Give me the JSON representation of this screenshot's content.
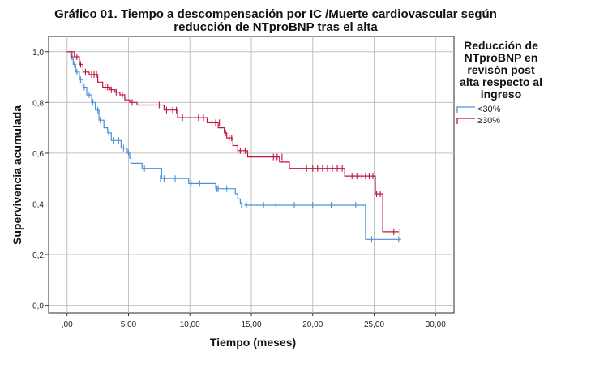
{
  "chart_data": {
    "type": "line",
    "step": true,
    "title": "Gráfico 01. Tiempo a descompensación por IC /Muerte cardiovascular según reducción de NTproBNP tras el alta",
    "xlabel": "Tiempo (meses)",
    "ylabel": "Supervivencia acumulada",
    "xlim": [
      -1.5,
      31.5
    ],
    "ylim": [
      -0.03,
      1.06
    ],
    "x_ticks": [
      0,
      5,
      10,
      15,
      20,
      25,
      30
    ],
    "x_tick_labels": [
      ",00",
      "5,00",
      "10,00",
      "15,00",
      "20,00",
      "25,00",
      "30,00"
    ],
    "y_ticks": [
      0,
      0.2,
      0.4,
      0.6,
      0.8,
      1.0
    ],
    "y_tick_labels": [
      "0,0",
      "0,2",
      "0,4",
      "0,6",
      "0,8",
      "1,0"
    ],
    "grid": true,
    "legend_title": "Reducción de NTproBNP en revisón post alta respecto al ingreso",
    "legend_position": "right",
    "series": [
      {
        "name": "<30%",
        "color": "#4a90d9",
        "steps": [
          [
            0,
            1.0
          ],
          [
            0.3,
            0.98
          ],
          [
            0.5,
            0.95
          ],
          [
            0.7,
            0.92
          ],
          [
            1.0,
            0.89
          ],
          [
            1.3,
            0.86
          ],
          [
            1.6,
            0.83
          ],
          [
            2.0,
            0.8
          ],
          [
            2.3,
            0.77
          ],
          [
            2.6,
            0.73
          ],
          [
            3.0,
            0.7
          ],
          [
            3.3,
            0.68
          ],
          [
            3.6,
            0.65
          ],
          [
            4.4,
            0.62
          ],
          [
            4.9,
            0.6
          ],
          [
            5.1,
            0.58
          ],
          [
            5.2,
            0.56
          ],
          [
            6.1,
            0.54
          ],
          [
            7.7,
            0.5
          ],
          [
            9.9,
            0.48
          ],
          [
            12.1,
            0.46
          ],
          [
            13.7,
            0.44
          ],
          [
            13.9,
            0.42
          ],
          [
            14.1,
            0.4
          ],
          [
            14.5,
            0.395
          ],
          [
            24.3,
            0.26
          ],
          [
            27.2,
            0.26
          ]
        ],
        "censored": [
          [
            0.4,
            0.98
          ],
          [
            0.6,
            0.95
          ],
          [
            0.8,
            0.92
          ],
          [
            1.1,
            0.89
          ],
          [
            1.4,
            0.86
          ],
          [
            1.8,
            0.83
          ],
          [
            2.1,
            0.8
          ],
          [
            2.5,
            0.77
          ],
          [
            2.7,
            0.73
          ],
          [
            3.4,
            0.68
          ],
          [
            3.8,
            0.65
          ],
          [
            4.2,
            0.65
          ],
          [
            4.6,
            0.62
          ],
          [
            5.0,
            0.6
          ],
          [
            6.3,
            0.54
          ],
          [
            7.6,
            0.5
          ],
          [
            7.9,
            0.5
          ],
          [
            8.8,
            0.5
          ],
          [
            10.1,
            0.48
          ],
          [
            10.8,
            0.48
          ],
          [
            12.2,
            0.46
          ],
          [
            12.3,
            0.46
          ],
          [
            13.0,
            0.46
          ],
          [
            14.2,
            0.395
          ],
          [
            14.6,
            0.395
          ],
          [
            16.0,
            0.395
          ],
          [
            17.0,
            0.395
          ],
          [
            18.5,
            0.395
          ],
          [
            20.0,
            0.395
          ],
          [
            21.5,
            0.395
          ],
          [
            23.5,
            0.395
          ],
          [
            24.8,
            0.26
          ],
          [
            27.0,
            0.26
          ]
        ]
      },
      {
        "name": "≥30%",
        "color": "#c0143c",
        "steps": [
          [
            0,
            1.0
          ],
          [
            0.6,
            0.98
          ],
          [
            1.0,
            0.95
          ],
          [
            1.3,
            0.92
          ],
          [
            1.8,
            0.91
          ],
          [
            2.5,
            0.88
          ],
          [
            2.9,
            0.86
          ],
          [
            3.5,
            0.85
          ],
          [
            3.9,
            0.84
          ],
          [
            4.3,
            0.83
          ],
          [
            4.7,
            0.81
          ],
          [
            5.1,
            0.8
          ],
          [
            5.7,
            0.79
          ],
          [
            7.9,
            0.77
          ],
          [
            9.0,
            0.74
          ],
          [
            10.9,
            0.74
          ],
          [
            11.4,
            0.72
          ],
          [
            12.3,
            0.7
          ],
          [
            12.8,
            0.68
          ],
          [
            13.0,
            0.66
          ],
          [
            13.5,
            0.63
          ],
          [
            13.9,
            0.61
          ],
          [
            14.7,
            0.585
          ],
          [
            17.3,
            0.565
          ],
          [
            18.1,
            0.54
          ],
          [
            22.6,
            0.51
          ],
          [
            25.1,
            0.44
          ],
          [
            25.7,
            0.29
          ],
          [
            27.0,
            0.29
          ]
        ],
        "censored": [
          [
            0.4,
            0.99
          ],
          [
            0.8,
            0.98
          ],
          [
            1.1,
            0.95
          ],
          [
            1.5,
            0.92
          ],
          [
            2.0,
            0.91
          ],
          [
            2.2,
            0.91
          ],
          [
            2.4,
            0.91
          ],
          [
            3.1,
            0.86
          ],
          [
            3.3,
            0.86
          ],
          [
            3.6,
            0.85
          ],
          [
            4.0,
            0.84
          ],
          [
            4.5,
            0.83
          ],
          [
            4.8,
            0.81
          ],
          [
            5.3,
            0.8
          ],
          [
            7.5,
            0.79
          ],
          [
            8.1,
            0.77
          ],
          [
            8.6,
            0.77
          ],
          [
            8.9,
            0.77
          ],
          [
            9.4,
            0.74
          ],
          [
            10.7,
            0.74
          ],
          [
            11.1,
            0.74
          ],
          [
            11.8,
            0.72
          ],
          [
            12.1,
            0.72
          ],
          [
            12.4,
            0.72
          ],
          [
            12.9,
            0.68
          ],
          [
            13.2,
            0.66
          ],
          [
            13.4,
            0.66
          ],
          [
            14.1,
            0.61
          ],
          [
            14.5,
            0.61
          ],
          [
            16.8,
            0.585
          ],
          [
            17.1,
            0.585
          ],
          [
            17.5,
            0.585
          ],
          [
            19.5,
            0.54
          ],
          [
            20.0,
            0.54
          ],
          [
            20.4,
            0.54
          ],
          [
            20.8,
            0.54
          ],
          [
            21.2,
            0.54
          ],
          [
            21.6,
            0.54
          ],
          [
            22.0,
            0.54
          ],
          [
            22.4,
            0.54
          ],
          [
            23.2,
            0.51
          ],
          [
            23.6,
            0.51
          ],
          [
            24.0,
            0.51
          ],
          [
            24.3,
            0.51
          ],
          [
            24.6,
            0.51
          ],
          [
            24.9,
            0.51
          ],
          [
            25.2,
            0.44
          ],
          [
            25.5,
            0.44
          ],
          [
            26.6,
            0.29
          ],
          [
            27.1,
            0.29
          ]
        ]
      }
    ]
  }
}
